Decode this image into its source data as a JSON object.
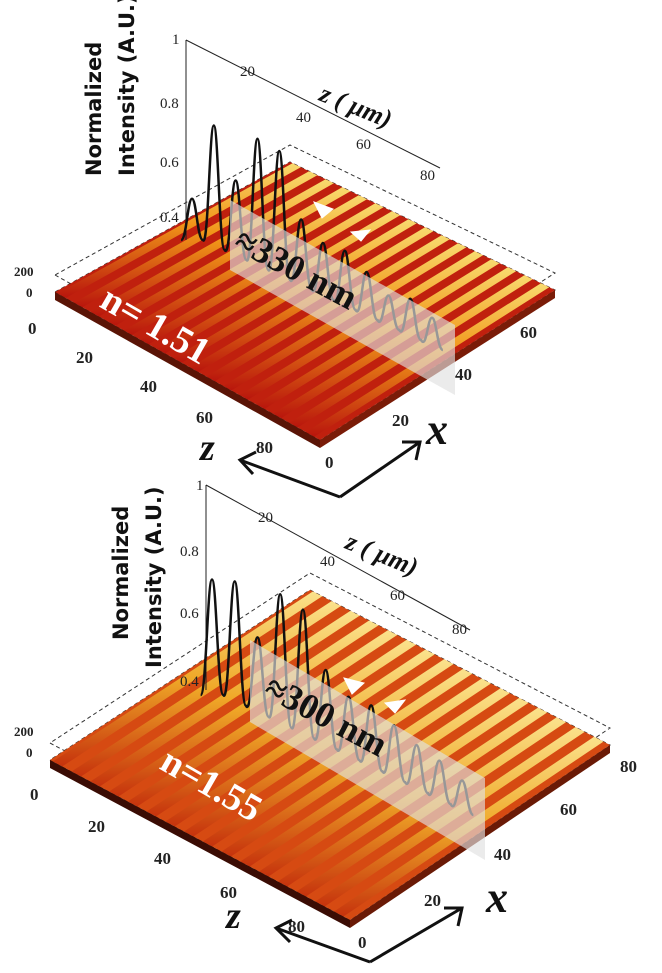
{
  "chart_data": [
    {
      "type": "surface",
      "panel": "top",
      "y_axis_label": [
        "Normalized",
        "Intensity (A.U.)"
      ],
      "z_axis_label": "z ( μm)",
      "z_ticks": [
        "20",
        "40",
        "60",
        "80"
      ],
      "y_ticks": [
        "1",
        "0.8",
        "0.6",
        "0.4"
      ],
      "left_ticks": [
        "200",
        "0"
      ],
      "front_z_ticks": [
        "0",
        "20",
        "40",
        "60",
        "80"
      ],
      "front_x_ticks": [
        "0",
        "20",
        "40",
        "60"
      ],
      "annotation_period": "≈330 nm",
      "annotation_index": "n= 1.51",
      "compass": {
        "z": "z",
        "x": "x"
      },
      "profile_peaks": [
        0.45,
        0.82,
        0.62,
        0.85,
        0.84,
        0.58,
        0.52,
        0.53,
        0.48,
        0.42,
        0.45,
        0.41
      ]
    },
    {
      "type": "surface",
      "panel": "bottom",
      "y_axis_label": [
        "Normalized",
        "Intensity (A.U.)"
      ],
      "z_axis_label": "z ( μm)",
      "z_ticks": [
        "20",
        "40",
        "60",
        "80"
      ],
      "y_ticks": [
        "1",
        "0.8",
        "0.6",
        "0.4"
      ],
      "left_ticks": [
        "200",
        "0"
      ],
      "front_z_ticks": [
        "0",
        "20",
        "40",
        "60",
        "80"
      ],
      "front_x_ticks": [
        "0",
        "20",
        "40",
        "60",
        "80"
      ],
      "annotation_period": "≈300 nm",
      "annotation_index": "n=1.55",
      "compass": {
        "z": "z",
        "x": "x"
      },
      "profile_peaks": [
        0.78,
        0.82,
        0.62,
        0.86,
        0.84,
        0.62,
        0.55,
        0.56,
        0.52,
        0.48,
        0.46,
        0.42
      ]
    }
  ]
}
